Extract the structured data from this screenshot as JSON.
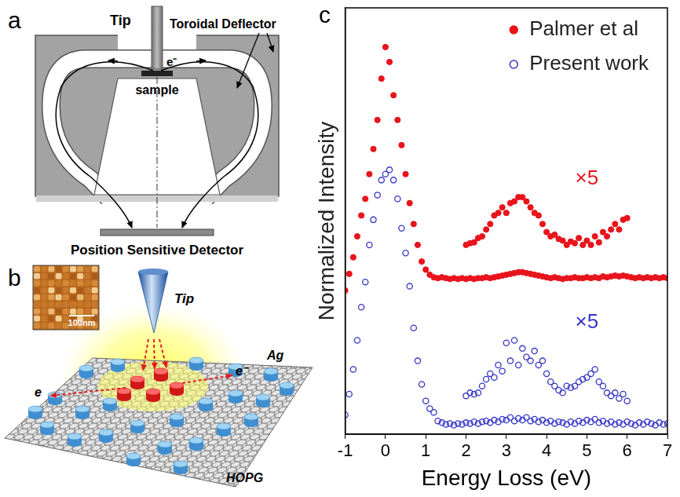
{
  "chart_data": {
    "type": "scatter",
    "panel": "c",
    "x_label": "Energy Loss (eV)",
    "y_label": "Normalized Intensity",
    "xlim": [
      -1,
      7
    ],
    "xticks": [
      -1,
      0,
      1,
      2,
      3,
      4,
      5,
      6,
      7
    ],
    "ylim": [
      0,
      100
    ],
    "tick_labels": "x",
    "grid": false,
    "legend": "upper right",
    "x": [
      -1.0,
      -0.9,
      -0.8,
      -0.7,
      -0.6,
      -0.5,
      -0.4,
      -0.3,
      -0.2,
      -0.1,
      0.0,
      0.1,
      0.2,
      0.3,
      0.4,
      0.5,
      0.6,
      0.7,
      0.8,
      0.9,
      1.0,
      1.1,
      1.2,
      1.3,
      1.4,
      1.5,
      1.6,
      1.7,
      1.8,
      1.9,
      2.0,
      2.1,
      2.2,
      2.3,
      2.4,
      2.5,
      2.6,
      2.7,
      2.8,
      2.9,
      3.0,
      3.1,
      3.2,
      3.3,
      3.4,
      3.5,
      3.6,
      3.7,
      3.8,
      3.9,
      4.0,
      4.1,
      4.2,
      4.3,
      4.4,
      4.5,
      4.6,
      4.7,
      4.8,
      4.9,
      5.0,
      5.1,
      5.2,
      5.3,
      5.4,
      5.5,
      5.6,
      5.7,
      5.8,
      5.9,
      6.0,
      6.1,
      6.2,
      6.3,
      6.4,
      6.5,
      6.6,
      6.7,
      6.8,
      6.9,
      7.0
    ],
    "series": [
      {
        "name": "Palmer et al",
        "color": "#e8141c",
        "marker": "circle",
        "values": [
          33.7,
          37.6,
          41.5,
          46.4,
          51.3,
          55.2,
          61.0,
          66.9,
          73.7,
          83.4,
          90.8,
          87.3,
          79.5,
          73.7,
          67.8,
          61.0,
          54.2,
          49.3,
          44.4,
          40.5,
          38.6,
          37.4,
          36.8,
          36.6,
          36.8,
          36.6,
          36.4,
          36.6,
          36.4,
          36.6,
          36.4,
          36.6,
          36.4,
          36.6,
          36.6,
          36.8,
          36.6,
          36.8,
          37.0,
          37.2,
          37.4,
          37.6,
          37.8,
          38.0,
          38.0,
          37.8,
          37.6,
          37.4,
          37.2,
          37.0,
          36.8,
          36.6,
          36.8,
          36.6,
          36.4,
          36.6,
          36.6,
          36.8,
          36.6,
          36.6,
          36.8,
          36.6,
          36.8,
          36.6,
          37.0,
          36.8,
          37.0,
          37.2,
          37.0,
          37.2,
          37.0,
          36.8,
          36.6,
          36.8,
          36.6,
          36.8,
          36.6,
          36.8,
          36.6,
          36.8,
          36.6
        ],
        "inset": {
          "label": "×5",
          "x": [
            2.0,
            2.1,
            2.2,
            2.3,
            2.4,
            2.5,
            2.6,
            2.7,
            2.8,
            2.9,
            3.0,
            3.1,
            3.2,
            3.3,
            3.4,
            3.5,
            3.6,
            3.7,
            3.8,
            3.9,
            4.0,
            4.1,
            4.2,
            4.3,
            4.4,
            4.5,
            4.6,
            4.7,
            4.8,
            4.9,
            5.0,
            5.1,
            5.2,
            5.3,
            5.4,
            5.5,
            5.6,
            5.7,
            5.8,
            5.9,
            6.0
          ],
          "values": [
            44.4,
            44.8,
            45.0,
            46.0,
            46.4,
            48.0,
            49.3,
            51.3,
            51.9,
            53.2,
            51.9,
            54.2,
            54.6,
            55.6,
            55.6,
            54.6,
            53.2,
            51.9,
            51.3,
            49.3,
            47.4,
            46.4,
            46.8,
            45.8,
            45.4,
            44.4,
            45.2,
            44.8,
            46.0,
            44.4,
            45.4,
            44.4,
            46.4,
            45.0,
            47.4,
            46.4,
            48.0,
            49.3,
            48.0,
            50.3,
            50.7
          ]
        }
      },
      {
        "name": "Present work",
        "color": "#3535c8",
        "marker": "open_circle",
        "values": [
          4.5,
          9.4,
          15.2,
          22.0,
          29.8,
          35.7,
          44.4,
          50.3,
          56.1,
          59.6,
          61.0,
          62.0,
          59.6,
          55.2,
          48.3,
          42.5,
          34.7,
          24.9,
          17.2,
          11.7,
          7.8,
          6.0,
          5.1,
          3.1,
          2.7,
          2.3,
          2.5,
          2.1,
          2.5,
          2.3,
          2.7,
          2.5,
          2.9,
          2.5,
          2.9,
          3.1,
          2.7,
          3.3,
          2.9,
          3.5,
          3.3,
          3.9,
          3.1,
          3.7,
          3.3,
          3.9,
          3.1,
          3.5,
          2.9,
          3.3,
          2.7,
          3.1,
          2.5,
          2.9,
          2.7,
          2.3,
          2.9,
          2.5,
          3.1,
          2.7,
          3.3,
          2.9,
          3.5,
          2.7,
          3.1,
          2.5,
          2.9,
          2.3,
          2.7,
          2.3,
          2.9,
          2.5,
          2.1,
          2.7,
          2.3,
          2.9,
          2.5,
          2.1,
          2.7,
          2.3,
          2.5
        ],
        "inset": {
          "label": "×5",
          "x": [
            2.0,
            2.1,
            2.2,
            2.3,
            2.4,
            2.5,
            2.6,
            2.7,
            2.8,
            2.9,
            3.0,
            3.1,
            3.2,
            3.3,
            3.4,
            3.5,
            3.6,
            3.7,
            3.8,
            3.9,
            4.0,
            4.1,
            4.2,
            4.3,
            4.4,
            4.5,
            4.6,
            4.7,
            4.8,
            4.9,
            5.0,
            5.1,
            5.2,
            5.3,
            5.4,
            5.5,
            5.6,
            5.7,
            5.8,
            5.9,
            6.0
          ],
          "values": [
            9.0,
            9.7,
            9.4,
            9.7,
            11.3,
            12.9,
            14.2,
            13.3,
            16.2,
            14.8,
            21.4,
            17.2,
            22.0,
            16.2,
            20.1,
            18.1,
            17.2,
            19.5,
            16.2,
            17.2,
            14.2,
            12.3,
            11.3,
            10.3,
            9.7,
            11.3,
            10.9,
            11.3,
            12.3,
            12.9,
            13.3,
            14.2,
            15.2,
            12.3,
            11.3,
            9.7,
            9.0,
            9.7,
            8.4,
            9.4,
            7.8
          ]
        }
      }
    ]
  },
  "panels": {
    "a": {
      "letter": "a",
      "tip": "Tip",
      "deflector": "Toroidal Deflector",
      "electron": "e⁻",
      "sample": "sample",
      "detector": "Position Sensitive Detector"
    },
    "b": {
      "letter": "b",
      "tip": "Tip",
      "scale_bar": "100nm",
      "electron_left": "e",
      "electron_right": "e⁻",
      "cluster": "Ag",
      "substrate": "HOPG"
    }
  }
}
